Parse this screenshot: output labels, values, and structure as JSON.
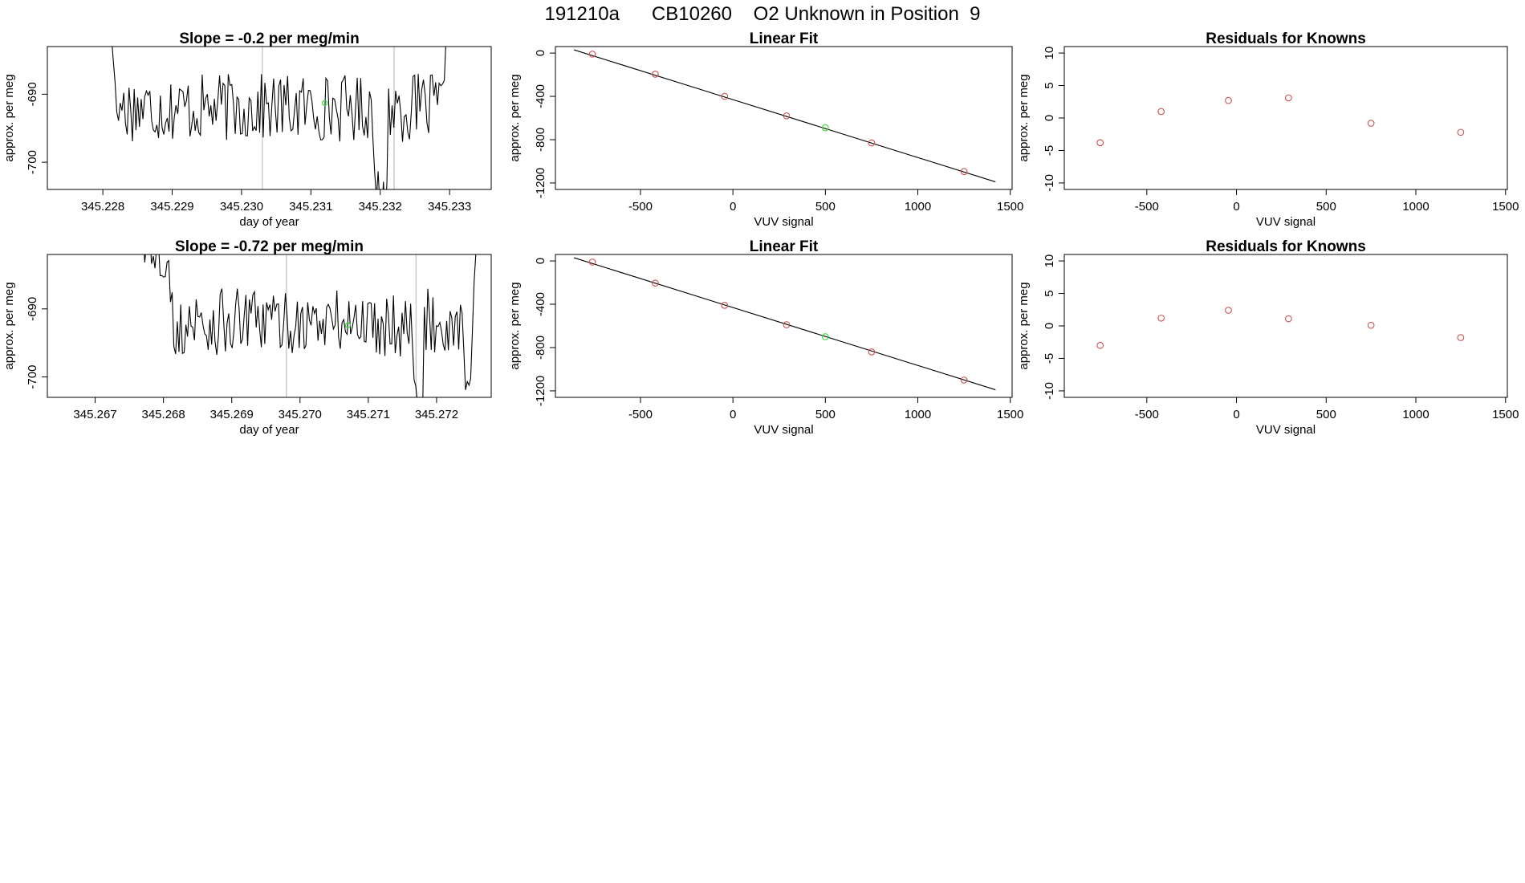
{
  "figure_title": "191210a      CB10260    O2 Unknown in Position  9",
  "colors": {
    "line": "#000000",
    "vline": "#cccccc",
    "known_point": "#cd4f4f",
    "unknown_point": "#33dd33",
    "axis": "#000000"
  },
  "chart_data": [
    {
      "id": "ts1",
      "type": "line",
      "title": "Slope =  -0.2  per meg/min",
      "xlabel": "day of year",
      "ylabel": "approx. per meg",
      "xlim": [
        345.2272,
        345.2336
      ],
      "ylim": [
        -704,
        -683
      ],
      "xticks": [
        345.228,
        345.229,
        345.23,
        345.231,
        345.232,
        345.233
      ],
      "xtick_labels": [
        "345.228",
        "345.229",
        "345.230",
        "345.231",
        "345.232",
        "345.233"
      ],
      "yticks": [
        -700,
        -690
      ],
      "ytick_labels": [
        "-700",
        "-690"
      ],
      "vlines": [
        345.2303,
        345.2322
      ],
      "series_summary": "noisy trace of ~200 samples, mostly -687 to -700, spiking above -683 near both ends and dipping below -704 near 345.2322",
      "x_start": 345.228,
      "x_end": 345.233,
      "unknown_point": {
        "x": 345.2312,
        "y": -691.3
      }
    },
    {
      "id": "fit1",
      "type": "scatter",
      "title": "Linear Fit",
      "xlabel": "VUV signal",
      "ylabel": "approx. per meg",
      "xlim": [
        -960,
        1510
      ],
      "ylim": [
        -1260,
        60
      ],
      "xticks": [
        -500,
        0,
        500,
        1000,
        1500
      ],
      "xtick_labels": [
        "-500",
        "0",
        "500",
        "1000",
        "1500"
      ],
      "yticks": [
        -1200,
        -800,
        -400,
        0
      ],
      "ytick_labels": [
        "-1200",
        "-800",
        "-400",
        "0"
      ],
      "line": [
        [
          -860,
          30
        ],
        [
          1420,
          -1190
        ]
      ],
      "known_points": [
        [
          -760,
          -10
        ],
        [
          -420,
          -195
        ],
        [
          -45,
          -400
        ],
        [
          290,
          -580
        ],
        [
          750,
          -830
        ],
        [
          1250,
          -1095
        ]
      ],
      "unknown_point": [
        500,
        -690
      ]
    },
    {
      "id": "res1",
      "type": "scatter",
      "title": "Residuals for Knowns",
      "xlabel": "VUV signal",
      "ylabel": "approx. per meg",
      "xlim": [
        -960,
        1510
      ],
      "ylim": [
        -11,
        11
      ],
      "xticks": [
        -500,
        0,
        500,
        1000,
        1500
      ],
      "xtick_labels": [
        "-500",
        "0",
        "500",
        "1000",
        "1500"
      ],
      "yticks": [
        -10,
        -5,
        0,
        5,
        10
      ],
      "ytick_labels": [
        "-10",
        "-5",
        "0",
        "5",
        "10"
      ],
      "points": [
        [
          -760,
          -3.8
        ],
        [
          -420,
          1.0
        ],
        [
          -45,
          2.7
        ],
        [
          290,
          3.1
        ],
        [
          750,
          -0.8
        ],
        [
          1250,
          -2.2
        ]
      ]
    },
    {
      "id": "ts2",
      "type": "line",
      "title": "Slope =  -0.72  per meg/min",
      "xlabel": "day of year",
      "ylabel": "approx. per meg",
      "xlim": [
        345.2663,
        345.2728
      ],
      "ylim": [
        -703,
        -682
      ],
      "xticks": [
        345.267,
        345.268,
        345.269,
        345.27,
        345.271,
        345.272
      ],
      "xtick_labels": [
        "345.267",
        "345.268",
        "345.269",
        "345.270",
        "345.271",
        "345.272"
      ],
      "yticks": [
        -700,
        -690
      ],
      "ytick_labels": [
        "-700",
        "-690"
      ],
      "vlines": [
        345.2698,
        345.2717
      ],
      "series_summary": "noisy trace of ~200 samples, mostly -688 to -697, high at the start near 345.2676, dropping below -703 near 345.2717 and rising steeply at the end",
      "x_start": 345.2676,
      "x_end": 345.2726,
      "unknown_point": {
        "x": 345.2707,
        "y": -692.4
      }
    },
    {
      "id": "fit2",
      "type": "scatter",
      "title": "Linear Fit",
      "xlabel": "VUV signal",
      "ylabel": "approx. per meg",
      "xlim": [
        -960,
        1510
      ],
      "ylim": [
        -1260,
        60
      ],
      "xticks": [
        -500,
        0,
        500,
        1000,
        1500
      ],
      "xtick_labels": [
        "-500",
        "0",
        "500",
        "1000",
        "1500"
      ],
      "yticks": [
        -1200,
        -800,
        -400,
        0
      ],
      "ytick_labels": [
        "-1200",
        "-800",
        "-400",
        "0"
      ],
      "line": [
        [
          -860,
          30
        ],
        [
          1420,
          -1190
        ]
      ],
      "known_points": [
        [
          -760,
          -10
        ],
        [
          -420,
          -205
        ],
        [
          -45,
          -410
        ],
        [
          290,
          -590
        ],
        [
          750,
          -840
        ],
        [
          1250,
          -1100
        ]
      ],
      "unknown_point": [
        500,
        -700
      ]
    },
    {
      "id": "res2",
      "type": "scatter",
      "title": "Residuals for Knowns",
      "xlabel": "VUV signal",
      "ylabel": "approx. per meg",
      "xlim": [
        -960,
        1510
      ],
      "ylim": [
        -11,
        11
      ],
      "xticks": [
        -500,
        0,
        500,
        1000,
        1500
      ],
      "xtick_labels": [
        "-500",
        "0",
        "500",
        "1000",
        "1500"
      ],
      "yticks": [
        -10,
        -5,
        0,
        5,
        10
      ],
      "ytick_labels": [
        "-10",
        "-5",
        "0",
        "5",
        "10"
      ],
      "points": [
        [
          -760,
          -3.0
        ],
        [
          -420,
          1.2
        ],
        [
          -45,
          2.4
        ],
        [
          290,
          1.1
        ],
        [
          750,
          0.1
        ],
        [
          1250,
          -1.8
        ]
      ]
    }
  ]
}
